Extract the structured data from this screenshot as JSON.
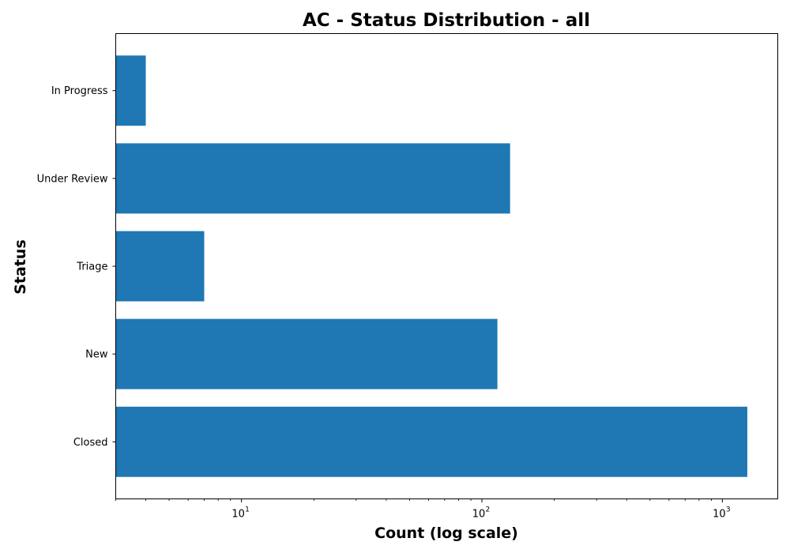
{
  "chart_data": {
    "type": "bar",
    "orientation": "horizontal",
    "title": "AC - Status Distribution - all",
    "xlabel": "Count (log scale)",
    "ylabel": "Status",
    "x_scale": "log",
    "xlim": [
      3,
      1700
    ],
    "x_ticks": [
      {
        "value": 10,
        "base": "10",
        "exp": "1"
      },
      {
        "value": 100,
        "base": "10",
        "exp": "2"
      },
      {
        "value": 1000,
        "base": "10",
        "exp": "3"
      }
    ],
    "categories": [
      "Closed",
      "New",
      "Triage",
      "Under Review",
      "In Progress"
    ],
    "values": [
      1270,
      116,
      7,
      131,
      4
    ],
    "bar_color": "#1f77b4",
    "grid": false,
    "legend": "none"
  }
}
